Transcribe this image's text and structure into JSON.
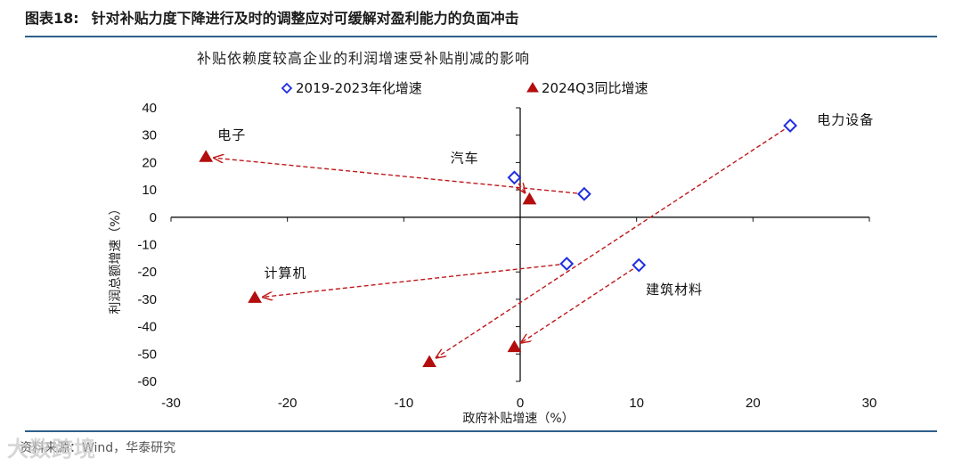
{
  "header": {
    "figure_label": "图表18:",
    "figure_title": "针对补贴力度下降进行及时的调整应对可缓解对盈利能力的负面冲击"
  },
  "source_text": "资料来源：Wind，华泰研究",
  "watermark_text": "大数跨境",
  "chart_data": {
    "type": "scatter",
    "title": "补贴依赖度较高企业的利润增速受补贴削减的影响",
    "xlabel": "政府补贴增速（%）",
    "ylabel": "利润总额增速（%）",
    "xlim": [
      -30,
      30
    ],
    "ylim": [
      -60,
      40
    ],
    "x_ticks": [
      -30,
      -20,
      -10,
      0,
      10,
      20,
      30
    ],
    "y_ticks": [
      40,
      30,
      20,
      10,
      0,
      -10,
      -20,
      -30,
      -40,
      -50,
      -60
    ],
    "legend_position": "top",
    "grid": false,
    "series": [
      {
        "name": "2019-2023年化增速",
        "marker": "diamond-open",
        "color": "#1f2ee0",
        "points": [
          {
            "label": "电子",
            "x": 5.5,
            "y": 8.5
          },
          {
            "label": "汽车",
            "x": -0.5,
            "y": 14.5
          },
          {
            "label": "计算机",
            "x": 4.0,
            "y": -17.0
          },
          {
            "label": "电力设备",
            "x": 23.2,
            "y": 33.5
          },
          {
            "label": "建筑材料",
            "x": 10.2,
            "y": -17.5
          }
        ]
      },
      {
        "name": "2024Q3同比增速",
        "marker": "triangle",
        "color": "#b30d0d",
        "points": [
          {
            "label": "电子",
            "x": -27.0,
            "y": 22.0
          },
          {
            "label": "汽车",
            "x": 0.8,
            "y": 6.5
          },
          {
            "label": "计算机",
            "x": -22.8,
            "y": -29.5
          },
          {
            "label": "电力设备",
            "x": -7.8,
            "y": -53.0
          },
          {
            "label": "建筑材料",
            "x": -0.5,
            "y": -47.5
          }
        ]
      }
    ],
    "arrows": [
      {
        "from": [
          5.5,
          8.5
        ],
        "to": [
          -27.0,
          22.0
        ]
      },
      {
        "from": [
          -0.5,
          14.5
        ],
        "to": [
          0.8,
          6.5
        ]
      },
      {
        "from": [
          4.0,
          -17.0
        ],
        "to": [
          -22.8,
          -29.5
        ]
      },
      {
        "from": [
          23.2,
          33.5
        ],
        "to": [
          -7.8,
          -53.0
        ]
      },
      {
        "from": [
          10.2,
          -17.5
        ],
        "to": [
          -0.5,
          -47.5
        ]
      }
    ],
    "annotations": [
      {
        "text": "电子",
        "x": -26.0,
        "y": 28.5
      },
      {
        "text": "汽车",
        "x": -6.0,
        "y": 20.0
      },
      {
        "text": "计算机",
        "x": -22.0,
        "y": -22.0
      },
      {
        "text": "电力设备",
        "x": 25.5,
        "y": 34.0
      },
      {
        "text": "建筑材料",
        "x": 10.8,
        "y": -28.0
      }
    ]
  }
}
